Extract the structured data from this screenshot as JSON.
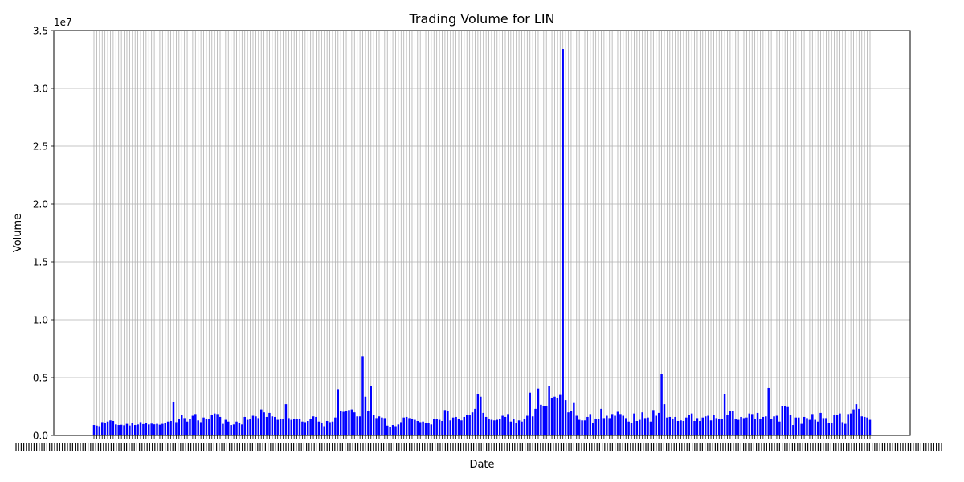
{
  "chart_data": {
    "type": "bar",
    "title": "Trading Volume for LIN",
    "xlabel": "Date",
    "ylabel": "Volume",
    "y_offset_label": "1e7",
    "ylim": [
      0,
      35000000
    ],
    "y_ticks": [
      0,
      5000000,
      10000000,
      15000000,
      20000000,
      25000000,
      30000000,
      35000000
    ],
    "y_tick_labels": [
      "0.0",
      "0.5",
      "1.0",
      "1.5",
      "2.0",
      "2.5",
      "3.0",
      "3.5"
    ],
    "grid": true,
    "bar_color": "#0000ff",
    "grid_color": "#b0b0b0",
    "values": [
      900000,
      850000,
      800000,
      1150000,
      1050000,
      1200000,
      1300000,
      1250000,
      950000,
      900000,
      920000,
      880000,
      1000000,
      860000,
      1050000,
      900000,
      950000,
      1150000,
      980000,
      1100000,
      950000,
      1020000,
      960000,
      1000000,
      930000,
      1000000,
      1100000,
      1200000,
      1250000,
      2850000,
      1150000,
      1400000,
      1750000,
      1500000,
      1200000,
      1450000,
      1700000,
      1850000,
      1300000,
      1150000,
      1550000,
      1400000,
      1450000,
      1800000,
      1900000,
      1850000,
      1600000,
      1000000,
      1350000,
      1200000,
      900000,
      950000,
      1200000,
      1050000,
      950000,
      1600000,
      1350000,
      1450000,
      1700000,
      1650000,
      1500000,
      2250000,
      2000000,
      1600000,
      1950000,
      1650000,
      1600000,
      1350000,
      1400000,
      1450000,
      2700000,
      1500000,
      1350000,
      1400000,
      1450000,
      1450000,
      1200000,
      1150000,
      1250000,
      1450000,
      1650000,
      1600000,
      1200000,
      1100000,
      800000,
      1250000,
      1150000,
      1200000,
      1550000,
      4000000,
      2100000,
      2050000,
      2100000,
      2200000,
      2250000,
      2000000,
      1650000,
      1650000,
      6850000,
      3350000,
      2150000,
      4250000,
      1800000,
      1500000,
      1650000,
      1550000,
      1500000,
      850000,
      750000,
      900000,
      800000,
      950000,
      1150000,
      1550000,
      1600000,
      1500000,
      1450000,
      1350000,
      1250000,
      1150000,
      1200000,
      1100000,
      1050000,
      950000,
      1400000,
      1450000,
      1350000,
      1250000,
      2200000,
      2150000,
      1300000,
      1550000,
      1600000,
      1450000,
      1300000,
      1600000,
      1800000,
      1750000,
      2000000,
      2300000,
      3550000,
      3350000,
      1950000,
      1600000,
      1400000,
      1350000,
      1300000,
      1350000,
      1450000,
      1700000,
      1600000,
      1850000,
      1200000,
      1400000,
      1100000,
      1300000,
      1200000,
      1400000,
      1700000,
      3700000,
      1650000,
      2300000,
      4050000,
      2650000,
      2550000,
      2550000,
      4300000,
      3250000,
      3350000,
      3200000,
      3500000,
      33400000,
      3050000,
      2000000,
      2100000,
      2800000,
      1700000,
      1350000,
      1300000,
      1300000,
      1600000,
      1850000,
      1050000,
      1450000,
      1400000,
      2300000,
      1500000,
      1700000,
      1500000,
      1850000,
      1700000,
      2050000,
      1850000,
      1700000,
      1500000,
      1200000,
      1050000,
      1900000,
      1250000,
      1350000,
      2000000,
      1500000,
      1550000,
      1200000,
      2200000,
      1700000,
      1950000,
      5300000,
      2700000,
      1550000,
      1600000,
      1450000,
      1600000,
      1250000,
      1300000,
      1250000,
      1550000,
      1800000,
      1900000,
      1250000,
      1500000,
      1250000,
      1550000,
      1650000,
      1700000,
      1300000,
      1750000,
      1500000,
      1400000,
      1400000,
      3600000,
      1750000,
      2100000,
      2150000,
      1400000,
      1350000,
      1600000,
      1500000,
      1550000,
      1900000,
      1850000,
      1400000,
      1950000,
      1400000,
      1600000,
      1650000,
      4100000,
      1400000,
      1650000,
      1700000,
      1200000,
      2500000,
      2500000,
      2450000,
      1800000,
      900000,
      1550000,
      1550000,
      1000000,
      1600000,
      1500000,
      1350000,
      1850000,
      1350000,
      1200000,
      1950000,
      1500000,
      1500000,
      1050000,
      1050000,
      1800000,
      1800000,
      1900000,
      1150000,
      1000000,
      1850000,
      1900000,
      2250000,
      2700000,
      2300000,
      1650000,
      1600000,
      1550000,
      1350000
    ]
  }
}
